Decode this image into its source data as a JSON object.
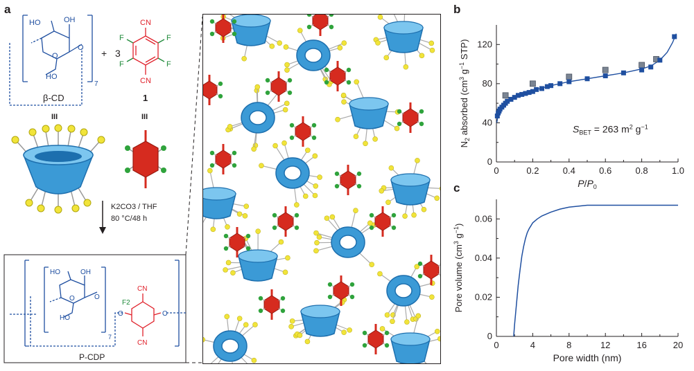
{
  "panels": {
    "a": "a",
    "b": "b",
    "c": "c"
  },
  "scheme": {
    "betacd_label": "β-CD",
    "plus": "+",
    "coefficient": "3",
    "compound_number": "1",
    "equiv_mark": "III",
    "conditions_line1": "K2CO3 / THF",
    "conditions_line2": "80 °C/48 h",
    "product_label": "P-CDP",
    "subscript_n": "7",
    "ho": "HO",
    "oh": "OH",
    "o": "O",
    "cn": "CN",
    "f": "F",
    "f2": "F2"
  },
  "chart_data": [
    {
      "type": "scatter",
      "panel": "b",
      "xlabel": "P/P0",
      "ylabel": "N2 absorbed (cm3 g−1 STP)",
      "xlim": [
        0,
        1.0
      ],
      "ylim": [
        0,
        140
      ],
      "xticks": [
        "0",
        "0.2",
        "0.4",
        "0.6",
        "0.8",
        "1.0"
      ],
      "yticks": [
        "0",
        "40",
        "80",
        "120"
      ],
      "annotation": "SBET = 263 m2 g−1",
      "series": [
        {
          "marker": "blue-square",
          "x": [
            0.005,
            0.01,
            0.015,
            0.02,
            0.03,
            0.04,
            0.05,
            0.06,
            0.08,
            0.1,
            0.12,
            0.14,
            0.16,
            0.18,
            0.2,
            0.22,
            0.25,
            0.28,
            0.3,
            0.35,
            0.4,
            0.5,
            0.6,
            0.7,
            0.8,
            0.85,
            0.9,
            0.98
          ],
          "y": [
            47,
            50,
            52,
            54,
            56,
            58,
            60,
            62,
            64,
            66,
            68,
            69,
            70,
            71,
            72,
            74,
            75,
            77,
            78,
            80,
            82,
            85,
            88,
            91,
            94,
            97,
            104,
            128
          ]
        },
        {
          "marker": "grey-square",
          "x": [
            0.05,
            0.2,
            0.4,
            0.6,
            0.8,
            0.88
          ],
          "y": [
            68,
            80,
            87,
            94,
            99,
            105
          ]
        }
      ],
      "fit_curve": {
        "x": [
          0.002,
          0.01,
          0.03,
          0.06,
          0.1,
          0.15,
          0.2,
          0.3,
          0.4,
          0.5,
          0.6,
          0.7,
          0.8,
          0.85,
          0.9,
          0.94,
          0.97,
          0.99
        ],
        "y": [
          40,
          48,
          55,
          61,
          66,
          70,
          73,
          78,
          82,
          85,
          88,
          91,
          95,
          98,
          104,
          112,
          122,
          131
        ]
      }
    },
    {
      "type": "line",
      "panel": "c",
      "xlabel": "Pore width (nm)",
      "ylabel": "Pore volume (cm3 g−1)",
      "xlim": [
        0,
        20
      ],
      "ylim": [
        0,
        0.07
      ],
      "xticks": [
        "0",
        "4",
        "8",
        "12",
        "16",
        "20"
      ],
      "yticks": [
        "0",
        "0.02",
        "0.04",
        "0.06"
      ],
      "series": [
        {
          "x": [
            1.9,
            2.0,
            2.2,
            2.4,
            2.6,
            2.8,
            3.0,
            3.2,
            3.4,
            3.6,
            3.8,
            4.0,
            4.5,
            5.0,
            6.0,
            7.0,
            8.0,
            9.0,
            10.0,
            12.0,
            16.0,
            20.0
          ],
          "y": [
            0,
            0.006,
            0.016,
            0.026,
            0.034,
            0.041,
            0.046,
            0.05,
            0.053,
            0.055,
            0.0565,
            0.058,
            0.06,
            0.0615,
            0.0635,
            0.065,
            0.066,
            0.0665,
            0.067,
            0.067,
            0.067,
            0.067
          ]
        }
      ]
    }
  ]
}
